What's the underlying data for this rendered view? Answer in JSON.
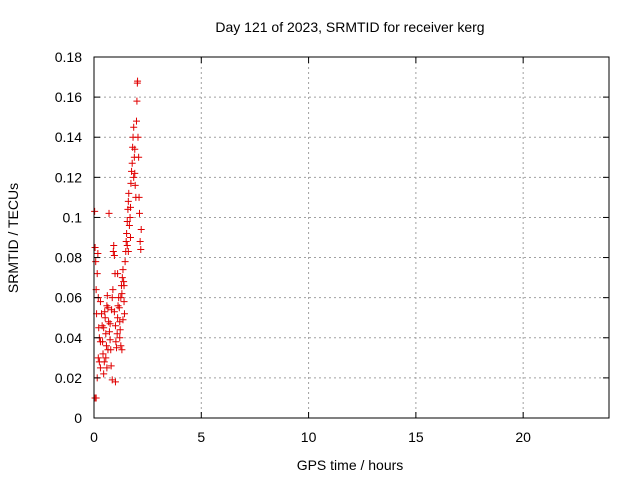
{
  "chart_data": {
    "type": "scatter",
    "title": "Day 121 of 2023, SRMTID for receiver kerg",
    "xlabel": "GPS time / hours",
    "ylabel": "SRMTID / TECUs",
    "xlim": [
      0,
      24
    ],
    "ylim": [
      0,
      0.18
    ],
    "x_ticks": [
      0,
      5,
      10,
      15,
      20
    ],
    "x_tick_labels": [
      "0",
      "5",
      "10",
      "15",
      "20"
    ],
    "y_ticks": [
      0,
      0.02,
      0.04,
      0.06,
      0.08,
      0.1,
      0.12,
      0.14,
      0.16,
      0.18
    ],
    "y_tick_labels": [
      "0",
      "0.02",
      "0.04",
      "0.06",
      "0.08",
      "0.1",
      "0.12",
      "0.14",
      "0.16",
      "0.18"
    ],
    "grid": true,
    "marker": "plus",
    "marker_color": "#e00000",
    "series": [
      {
        "points": [
          [
            0.03,
            0.103
          ],
          [
            0.05,
            0.085
          ],
          [
            0.08,
            0.078
          ],
          [
            0.1,
            0.064
          ],
          [
            0.12,
            0.052
          ],
          [
            0.05,
            0.01
          ],
          [
            0.1,
            0.01
          ],
          [
            0.15,
            0.072
          ],
          [
            0.18,
            0.082
          ],
          [
            0.2,
            0.06
          ],
          [
            0.22,
            0.045
          ],
          [
            0.25,
            0.04
          ],
          [
            0.2,
            0.03
          ],
          [
            0.25,
            0.028
          ],
          [
            0.3,
            0.025
          ],
          [
            0.3,
            0.058
          ],
          [
            0.35,
            0.052
          ],
          [
            0.38,
            0.046
          ],
          [
            0.4,
            0.038
          ],
          [
            0.42,
            0.032
          ],
          [
            0.45,
            0.022
          ],
          [
            0.48,
            0.028
          ],
          [
            0.5,
            0.053
          ],
          [
            0.52,
            0.05
          ],
          [
            0.55,
            0.042
          ],
          [
            0.58,
            0.036
          ],
          [
            0.6,
            0.056
          ],
          [
            0.62,
            0.061
          ],
          [
            0.65,
            0.055
          ],
          [
            0.68,
            0.048
          ],
          [
            0.7,
            0.102
          ],
          [
            0.72,
            0.043
          ],
          [
            0.75,
            0.039
          ],
          [
            0.78,
            0.034
          ],
          [
            0.8,
            0.026
          ],
          [
            0.82,
            0.054
          ],
          [
            0.85,
            0.06
          ],
          [
            0.88,
            0.064
          ],
          [
            0.9,
            0.083
          ],
          [
            0.92,
            0.086
          ],
          [
            0.95,
            0.081
          ],
          [
            0.98,
            0.072
          ],
          [
            1.0,
            0.046
          ],
          [
            1.02,
            0.038
          ],
          [
            1.05,
            0.035
          ],
          [
            1.08,
            0.042
          ],
          [
            1.1,
            0.05
          ],
          [
            1.12,
            0.056
          ],
          [
            1.15,
            0.06
          ],
          [
            1.18,
            0.055
          ],
          [
            1.2,
            0.048
          ],
          [
            1.22,
            0.044
          ],
          [
            1.25,
            0.036
          ],
          [
            1.28,
            0.066
          ],
          [
            1.3,
            0.062
          ],
          [
            1.32,
            0.07
          ],
          [
            1.35,
            0.074
          ],
          [
            1.38,
            0.068
          ],
          [
            1.4,
            0.058
          ],
          [
            1.42,
            0.052
          ],
          [
            1.45,
            0.078
          ],
          [
            1.48,
            0.083
          ],
          [
            1.5,
            0.088
          ],
          [
            1.52,
            0.092
          ],
          [
            1.55,
            0.098
          ],
          [
            1.58,
            0.104
          ],
          [
            1.6,
            0.108
          ],
          [
            1.62,
            0.112
          ],
          [
            1.65,
            0.096
          ],
          [
            1.68,
            0.1
          ],
          [
            1.7,
            0.105
          ],
          [
            1.72,
            0.117
          ],
          [
            1.75,
            0.123
          ],
          [
            1.78,
            0.127
          ],
          [
            1.8,
            0.135
          ],
          [
            1.82,
            0.14
          ],
          [
            1.85,
            0.145
          ],
          [
            1.88,
            0.13
          ],
          [
            1.9,
            0.122
          ],
          [
            1.92,
            0.116
          ],
          [
            1.95,
            0.11
          ],
          [
            1.98,
            0.148
          ],
          [
            2.0,
            0.158
          ],
          [
            2.02,
            0.167
          ],
          [
            2.03,
            0.168
          ],
          [
            2.05,
            0.14
          ],
          [
            2.08,
            0.13
          ],
          [
            2.1,
            0.11
          ],
          [
            2.12,
            0.102
          ],
          [
            2.15,
            0.088
          ],
          [
            2.18,
            0.084
          ],
          [
            2.2,
            0.094
          ],
          [
            1.6,
            0.083
          ],
          [
            1.7,
            0.09
          ],
          [
            1.85,
            0.12
          ],
          [
            1.9,
            0.134
          ],
          [
            0.6,
            0.025
          ],
          [
            0.75,
            0.047
          ],
          [
            0.95,
            0.053
          ],
          [
            1.2,
            0.04
          ],
          [
            1.3,
            0.034
          ],
          [
            1.4,
            0.066
          ],
          [
            1.55,
            0.086
          ],
          [
            0.15,
            0.02
          ],
          [
            0.3,
            0.038
          ],
          [
            0.45,
            0.045
          ],
          [
            0.55,
            0.03
          ],
          [
            0.65,
            0.034
          ],
          [
            0.85,
            0.019
          ],
          [
            1.0,
            0.018
          ],
          [
            1.1,
            0.072
          ],
          [
            1.25,
            0.06
          ],
          [
            1.35,
            0.049
          ]
        ]
      }
    ]
  }
}
